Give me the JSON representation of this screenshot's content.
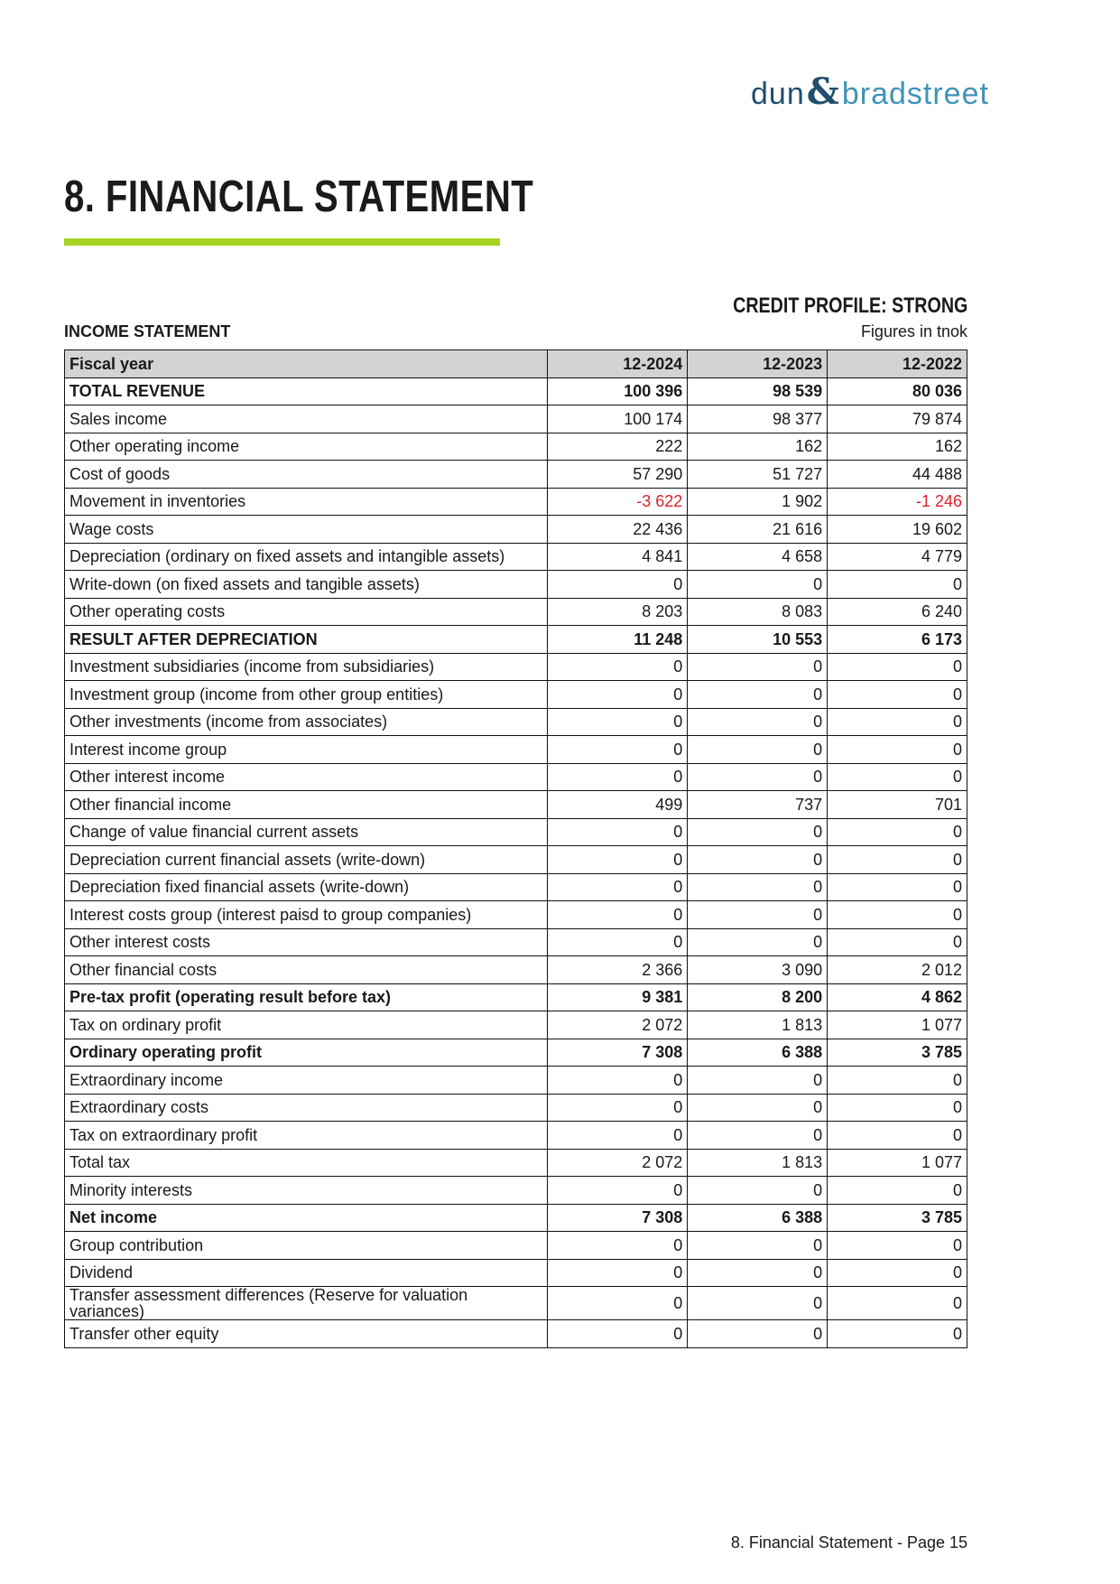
{
  "logo": {
    "part1": "dun",
    "amp": "&",
    "part2": "bradstreet",
    "colors": {
      "dun": "#1f4e6e",
      "bradstreet": "#3f93b8"
    }
  },
  "title": "8. FINANCIAL STATEMENT",
  "accent_color": "#a5d31f",
  "credit_profile": "CREDIT PROFILE: STRONG",
  "section_title": "INCOME STATEMENT",
  "units": "Figures in tnok",
  "negative_color": "#e0202c",
  "table": {
    "headers": [
      "Fiscal year",
      "12-2024",
      "12-2023",
      "12-2022"
    ],
    "rows": [
      {
        "label": "TOTAL REVENUE",
        "values": [
          "100 396",
          "98 539",
          "80 036"
        ],
        "bold": true
      },
      {
        "label": "Sales income",
        "values": [
          "100 174",
          "98 377",
          "79 874"
        ]
      },
      {
        "label": "Other operating income",
        "values": [
          "222",
          "162",
          "162"
        ]
      },
      {
        "label": "Cost of goods",
        "values": [
          "57 290",
          "51 727",
          "44 488"
        ]
      },
      {
        "label": "Movement in inventories",
        "values": [
          "-3 622",
          "1 902",
          "-1 246"
        ]
      },
      {
        "label": "Wage costs",
        "values": [
          "22 436",
          "21 616",
          "19 602"
        ]
      },
      {
        "label": "Depreciation (ordinary on fixed assets and intangible assets)",
        "values": [
          "4 841",
          "4 658",
          "4 779"
        ]
      },
      {
        "label": "Write-down (on fixed assets and tangible assets)",
        "values": [
          "0",
          "0",
          "0"
        ]
      },
      {
        "label": "Other operating costs",
        "values": [
          "8 203",
          "8 083",
          "6 240"
        ]
      },
      {
        "label": "RESULT AFTER DEPRECIATION",
        "values": [
          "11 248",
          "10 553",
          "6 173"
        ],
        "bold": true
      },
      {
        "label": "Investment subsidiaries (income from subsidiaries)",
        "values": [
          "0",
          "0",
          "0"
        ]
      },
      {
        "label": "Investment group (income from other group entities)",
        "values": [
          "0",
          "0",
          "0"
        ]
      },
      {
        "label": "Other investments (income from associates)",
        "values": [
          "0",
          "0",
          "0"
        ]
      },
      {
        "label": "Interest income group",
        "values": [
          "0",
          "0",
          "0"
        ]
      },
      {
        "label": "Other interest income",
        "values": [
          "0",
          "0",
          "0"
        ]
      },
      {
        "label": "Other financial income",
        "values": [
          "499",
          "737",
          "701"
        ]
      },
      {
        "label": "Change of value financial current assets",
        "values": [
          "0",
          "0",
          "0"
        ]
      },
      {
        "label": "Depreciation current financial assets (write-down)",
        "values": [
          "0",
          "0",
          "0"
        ]
      },
      {
        "label": "Depreciation fixed financial assets (write-down)",
        "values": [
          "0",
          "0",
          "0"
        ]
      },
      {
        "label": "Interest costs group (interest paisd to group companies)",
        "values": [
          "0",
          "0",
          "0"
        ]
      },
      {
        "label": "Other interest costs",
        "values": [
          "0",
          "0",
          "0"
        ]
      },
      {
        "label": "Other financial costs",
        "values": [
          "2 366",
          "3 090",
          "2 012"
        ]
      },
      {
        "label": "Pre-tax profit (operating result before tax)",
        "values": [
          "9 381",
          "8 200",
          "4 862"
        ],
        "bold": true
      },
      {
        "label": "Tax on ordinary profit",
        "values": [
          "2 072",
          "1 813",
          "1 077"
        ]
      },
      {
        "label": "Ordinary operating profit",
        "values": [
          "7 308",
          "6 388",
          "3 785"
        ],
        "bold": true
      },
      {
        "label": "Extraordinary income",
        "values": [
          "0",
          "0",
          "0"
        ]
      },
      {
        "label": "Extraordinary costs",
        "values": [
          "0",
          "0",
          "0"
        ]
      },
      {
        "label": "Tax on extraordinary profit",
        "values": [
          "0",
          "0",
          "0"
        ]
      },
      {
        "label": "Total tax",
        "values": [
          "2 072",
          "1 813",
          "1 077"
        ]
      },
      {
        "label": "Minority interests",
        "values": [
          "0",
          "0",
          "0"
        ]
      },
      {
        "label": "Net income",
        "values": [
          "7 308",
          "6 388",
          "3 785"
        ],
        "bold": true
      },
      {
        "label": "Group contribution",
        "values": [
          "0",
          "0",
          "0"
        ]
      },
      {
        "label": "Dividend",
        "values": [
          "0",
          "0",
          "0"
        ]
      },
      {
        "label": "Transfer assessment differences (Reserve for valuation variances)",
        "values": [
          "0",
          "0",
          "0"
        ]
      },
      {
        "label": "Transfer other equity",
        "values": [
          "0",
          "0",
          "0"
        ]
      }
    ]
  },
  "footer": "8. Financial Statement - Page 15"
}
